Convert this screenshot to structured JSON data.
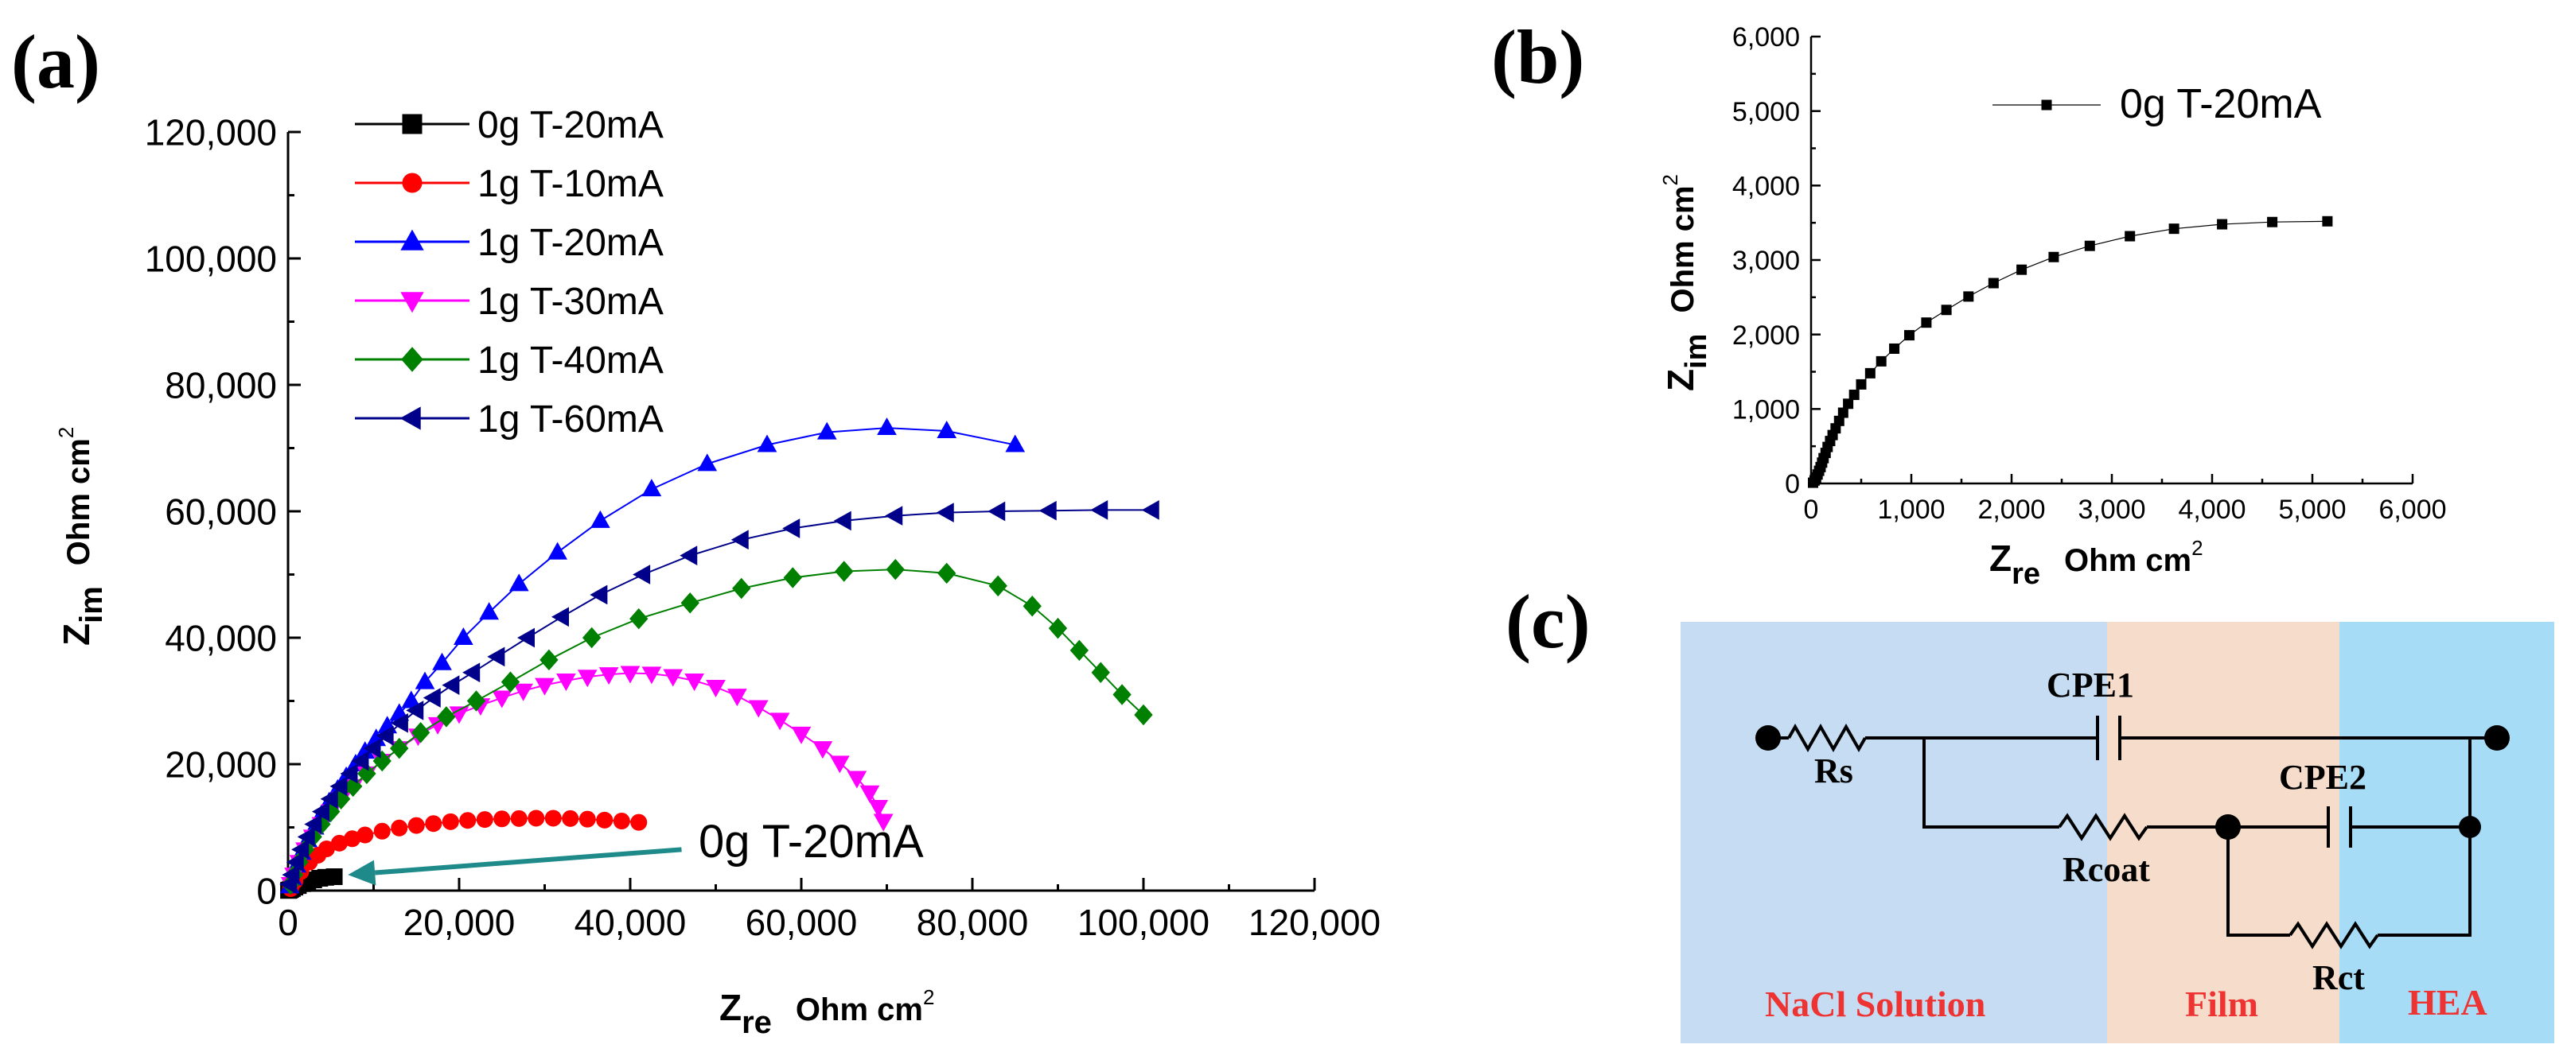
{
  "colors": {
    "black": "#000000",
    "red": "#ff0000",
    "blue": "#0000ff",
    "magenta": "#ff00ff",
    "green": "#008000",
    "navy": "#00008b",
    "teal": "#1f8a8a",
    "solution_bg": "#c6dcf2",
    "film_bg": "#f5dccb",
    "hea_bg": "#a7dcf7",
    "region_label": "#ee3333"
  },
  "chart_data": [
    {
      "id": "a",
      "panel_label": "(a)",
      "type": "scatter",
      "xlabel_main": "Z",
      "xlabel_sub": "re",
      "xlabel_unit": "Ohm cm",
      "xlabel_sup": "2",
      "ylabel_main": "Z",
      "ylabel_sub": "im",
      "ylabel_unit": "Ohm cm",
      "ylabel_sup": "2",
      "xlim": [
        0,
        120000
      ],
      "ylim": [
        0,
        120000
      ],
      "xticks": [
        "0",
        "20,000",
        "40,000",
        "60,000",
        "80,000",
        "100,000",
        "120,000"
      ],
      "yticks": [
        "0",
        "20,000",
        "40,000",
        "60,000",
        "80,000",
        "100,000",
        "120,000"
      ],
      "annotation": {
        "text": "0g T-20mA",
        "arrow_from": [
          46000,
          6500
        ],
        "arrow_to": [
          7000,
          2500
        ]
      },
      "legend_position": "top-left",
      "series": [
        {
          "name": "0g T-20mA",
          "color": "black",
          "marker": "square",
          "points": [
            [
              60,
              30
            ],
            [
              150,
              80
            ],
            [
              300,
              180
            ],
            [
              500,
              330
            ],
            [
              800,
              550
            ],
            [
              1200,
              800
            ],
            [
              1700,
              1100
            ],
            [
              2300,
              1400
            ],
            [
              3000,
              1700
            ],
            [
              3700,
              1950
            ],
            [
              4400,
              2100
            ],
            [
              5400,
              2200
            ]
          ]
        },
        {
          "name": "1g T-10mA",
          "color": "red",
          "marker": "circle",
          "points": [
            [
              300,
              300
            ],
            [
              800,
              1500
            ],
            [
              1500,
              3000
            ],
            [
              2500,
              4500
            ],
            [
              3500,
              5600
            ],
            [
              4500,
              6600
            ],
            [
              6000,
              7500
            ],
            [
              7500,
              8200
            ],
            [
              9000,
              8800
            ],
            [
              11000,
              9400
            ],
            [
              13000,
              9900
            ],
            [
              15000,
              10300
            ],
            [
              17000,
              10600
            ],
            [
              19000,
              10900
            ],
            [
              21000,
              11100
            ],
            [
              23000,
              11250
            ],
            [
              25000,
              11350
            ],
            [
              27000,
              11400
            ],
            [
              29000,
              11450
            ],
            [
              31000,
              11450
            ],
            [
              33000,
              11400
            ],
            [
              35000,
              11300
            ],
            [
              37000,
              11150
            ],
            [
              39000,
              11000
            ],
            [
              41000,
              10800
            ]
          ]
        },
        {
          "name": "1g T-20mA",
          "color": "blue",
          "marker": "triangle-up",
          "points": [
            [
              200,
              700
            ],
            [
              500,
              2000
            ],
            [
              1000,
              4000
            ],
            [
              1600,
              6000
            ],
            [
              2300,
              8000
            ],
            [
              3100,
              10000
            ],
            [
              3900,
              12000
            ],
            [
              4800,
              14000
            ],
            [
              5800,
              16000
            ],
            [
              6800,
              18000
            ],
            [
              7900,
              20000
            ],
            [
              9000,
              22000
            ],
            [
              10300,
              24000
            ],
            [
              11600,
              26000
            ],
            [
              13000,
              28000
            ],
            [
              14400,
              30000
            ],
            [
              16000,
              33000
            ],
            [
              18000,
              36000
            ],
            [
              20500,
              40000
            ],
            [
              23500,
              44000
            ],
            [
              27000,
              48500
            ],
            [
              31500,
              53500
            ],
            [
              36500,
              58500
            ],
            [
              42500,
              63500
            ],
            [
              49000,
              67500
            ],
            [
              56000,
              70500
            ],
            [
              63000,
              72500
            ],
            [
              70000,
              73200
            ],
            [
              77000,
              72700
            ],
            [
              85000,
              70500
            ]
          ]
        },
        {
          "name": "1g T-30mA",
          "color": "magenta",
          "marker": "triangle-down",
          "points": [
            [
              300,
              1000
            ],
            [
              700,
              2500
            ],
            [
              1300,
              4500
            ],
            [
              2000,
              6500
            ],
            [
              2900,
              8500
            ],
            [
              3900,
              10500
            ],
            [
              5000,
              12500
            ],
            [
              6200,
              14500
            ],
            [
              7600,
              16500
            ],
            [
              9200,
              18500
            ],
            [
              11000,
              20500
            ],
            [
              13000,
              22500
            ],
            [
              15200,
              24500
            ],
            [
              17500,
              26300
            ],
            [
              20000,
              28000
            ],
            [
              22500,
              29300
            ],
            [
              25000,
              30500
            ],
            [
              27500,
              31600
            ],
            [
              30000,
              32500
            ],
            [
              32500,
              33200
            ],
            [
              35000,
              33800
            ],
            [
              37500,
              34200
            ],
            [
              40000,
              34400
            ],
            [
              42500,
              34300
            ],
            [
              45000,
              33900
            ],
            [
              47500,
              33200
            ],
            [
              50000,
              32200
            ],
            [
              52500,
              30800
            ],
            [
              55000,
              29000
            ],
            [
              57500,
              27000
            ],
            [
              60000,
              24800
            ],
            [
              62500,
              22500
            ],
            [
              64500,
              20200
            ],
            [
              66500,
              17800
            ],
            [
              68000,
              15500
            ],
            [
              69000,
              13200
            ],
            [
              69600,
              11000
            ]
          ]
        },
        {
          "name": "1g T-40mA",
          "color": "green",
          "marker": "diamond",
          "points": [
            [
              300,
              1000
            ],
            [
              700,
              2500
            ],
            [
              1300,
              4500
            ],
            [
              2000,
              6500
            ],
            [
              2900,
              8500
            ],
            [
              3900,
              10500
            ],
            [
              5000,
              12500
            ],
            [
              6200,
              14500
            ],
            [
              7600,
              16500
            ],
            [
              9200,
              18500
            ],
            [
              11000,
              20500
            ],
            [
              13000,
              22500
            ],
            [
              15500,
              25000
            ],
            [
              18500,
              27500
            ],
            [
              22000,
              30000
            ],
            [
              26000,
              33000
            ],
            [
              30500,
              36500
            ],
            [
              35500,
              40000
            ],
            [
              41000,
              43000
            ],
            [
              47000,
              45500
            ],
            [
              53000,
              47800
            ],
            [
              59000,
              49500
            ],
            [
              65000,
              50500
            ],
            [
              71000,
              50800
            ],
            [
              77000,
              50200
            ],
            [
              83000,
              48200
            ],
            [
              87000,
              45000
            ],
            [
              90000,
              41500
            ],
            [
              92500,
              38000
            ],
            [
              95000,
              34500
            ],
            [
              97500,
              31000
            ],
            [
              100000,
              27800
            ]
          ]
        },
        {
          "name": "1g T-60mA",
          "color": "navy",
          "marker": "triangle-left",
          "points": [
            [
              200,
              1000
            ],
            [
              500,
              2500
            ],
            [
              1000,
              4500
            ],
            [
              1600,
              6500
            ],
            [
              2300,
              8500
            ],
            [
              3100,
              10500
            ],
            [
              4000,
              12500
            ],
            [
              5000,
              14500
            ],
            [
              6100,
              16500
            ],
            [
              7300,
              18500
            ],
            [
              8600,
              20500
            ],
            [
              10000,
              22500
            ],
            [
              11500,
              24500
            ],
            [
              13200,
              26500
            ],
            [
              15000,
              28500
            ],
            [
              17000,
              30500
            ],
            [
              19200,
              32500
            ],
            [
              21600,
              34500
            ],
            [
              24500,
              37000
            ],
            [
              28000,
              40000
            ],
            [
              32000,
              43300
            ],
            [
              36500,
              46800
            ],
            [
              41500,
              50000
            ],
            [
              47000,
              53000
            ],
            [
              53000,
              55500
            ],
            [
              59000,
              57300
            ],
            [
              65000,
              58500
            ],
            [
              71000,
              59300
            ],
            [
              77000,
              59800
            ],
            [
              83000,
              60000
            ],
            [
              89000,
              60100
            ],
            [
              95000,
              60200
            ],
            [
              101000,
              60200
            ]
          ]
        }
      ]
    },
    {
      "id": "b",
      "panel_label": "(b)",
      "type": "scatter",
      "xlabel_main": "Z",
      "xlabel_sub": "re",
      "xlabel_unit": "Ohm cm",
      "xlabel_sup": "2",
      "ylabel_main": "Z",
      "ylabel_sub": "im",
      "ylabel_unit": "Ohm cm",
      "ylabel_sup": "2",
      "xlim": [
        0,
        6000
      ],
      "ylim": [
        0,
        6000
      ],
      "xticks": [
        "0",
        "1,000",
        "2,000",
        "3,000",
        "4,000",
        "5,000",
        "6,000"
      ],
      "yticks": [
        "0",
        "1,000",
        "2,000",
        "3,000",
        "4,000",
        "5,000",
        "6,000"
      ],
      "legend_position": "top-right",
      "series": [
        {
          "name": "0g T-20mA",
          "color": "black",
          "marker": "square",
          "points": [
            [
              20,
              10
            ],
            [
              35,
              40
            ],
            [
              50,
              80
            ],
            [
              65,
              120
            ],
            [
              80,
              170
            ],
            [
              95,
              220
            ],
            [
              110,
              280
            ],
            [
              125,
              340
            ],
            [
              145,
              410
            ],
            [
              165,
              490
            ],
            [
              190,
              570
            ],
            [
              215,
              650
            ],
            [
              245,
              740
            ],
            [
              280,
              840
            ],
            [
              320,
              950
            ],
            [
              370,
              1070
            ],
            [
              430,
              1190
            ],
            [
              500,
              1330
            ],
            [
              590,
              1480
            ],
            [
              700,
              1640
            ],
            [
              830,
              1810
            ],
            [
              980,
              1990
            ],
            [
              1150,
              2160
            ],
            [
              1350,
              2330
            ],
            [
              1570,
              2510
            ],
            [
              1820,
              2690
            ],
            [
              2100,
              2870
            ],
            [
              2420,
              3040
            ],
            [
              2780,
              3190
            ],
            [
              3180,
              3320
            ],
            [
              3620,
              3420
            ],
            [
              4100,
              3480
            ],
            [
              4600,
              3510
            ],
            [
              5150,
              3520
            ]
          ]
        }
      ]
    }
  ],
  "panel_c": {
    "panel_label": "(c)",
    "regions": [
      "NaCl Solution",
      "Film",
      "HEA"
    ],
    "components": {
      "rs": "Rs",
      "cpe1": "CPE1",
      "rcoat": "Rcoat",
      "cpe2": "CPE2",
      "rct": "Rct"
    }
  }
}
